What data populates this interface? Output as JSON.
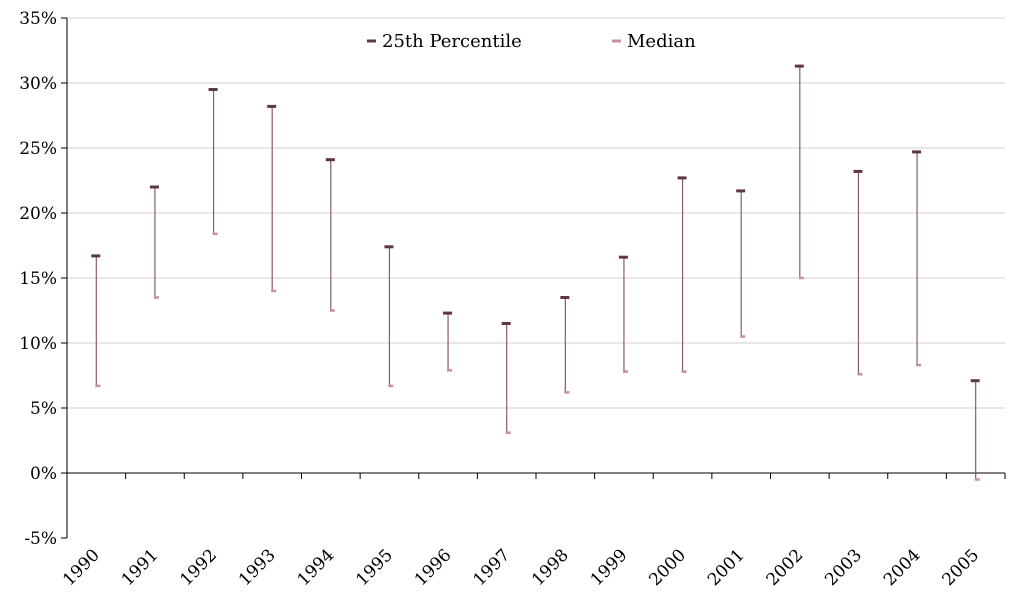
{
  "chart_data": {
    "type": "hi-lo",
    "categories": [
      "1990",
      "1991",
      "1992",
      "1993",
      "1994",
      "1995",
      "1996",
      "1997",
      "1998",
      "1999",
      "2000",
      "2001",
      "2002",
      "2003",
      "2004",
      "2005"
    ],
    "series": [
      {
        "name": "25th Percentile",
        "color": "#5e3747",
        "values": [
          16.7,
          22.0,
          29.5,
          28.2,
          24.1,
          17.4,
          12.3,
          11.5,
          13.5,
          16.6,
          22.7,
          21.7,
          31.3,
          23.2,
          24.7,
          7.1
        ]
      },
      {
        "name": "Median",
        "color": "#c48f9f",
        "values": [
          6.7,
          13.5,
          18.4,
          14.0,
          12.5,
          6.7,
          7.9,
          3.1,
          6.2,
          7.8,
          7.8,
          10.5,
          15.0,
          7.6,
          8.3,
          -0.5
        ]
      }
    ],
    "yticks": [
      "-5%",
      "0%",
      "5%",
      "10%",
      "15%",
      "20%",
      "25%",
      "30%",
      "35%"
    ],
    "ylim": [
      -5,
      35
    ],
    "grid": true,
    "legend_position": "top-center",
    "connector_color": "#8a5a6a"
  }
}
